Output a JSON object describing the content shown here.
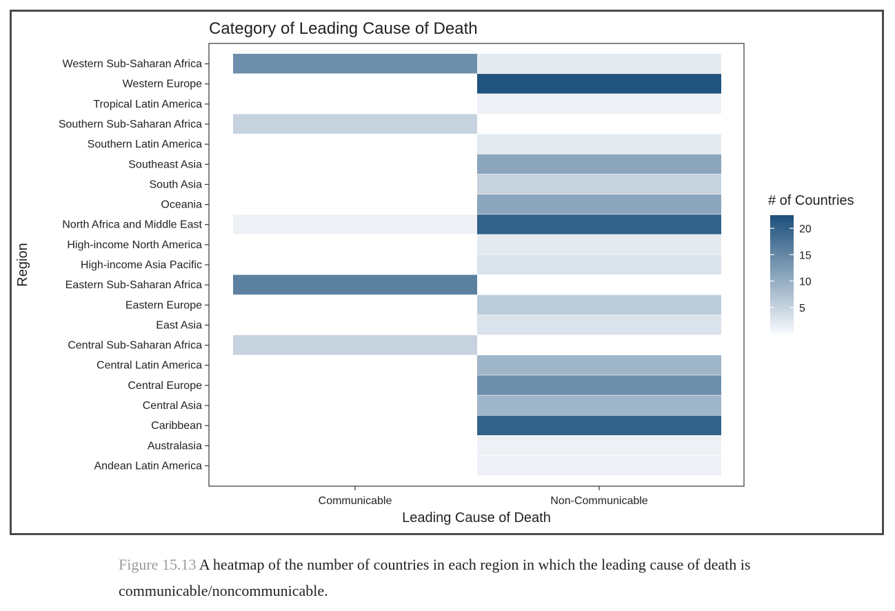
{
  "chart_data": {
    "type": "heatmap",
    "title": "Category of Leading Cause of Death",
    "xlabel": "Leading Cause of Death",
    "ylabel": "Region",
    "x_categories": [
      "Communicable",
      "Non-Communicable"
    ],
    "y_categories": [
      "Western Sub-Saharan Africa",
      "Western Europe",
      "Tropical Latin America",
      "Southern Sub-Saharan Africa",
      "Southern Latin America",
      "Southeast Asia",
      "South Asia",
      "Oceania",
      "North Africa and Middle East",
      "High-income North America",
      "High-income Asia Pacific",
      "Eastern Sub-Saharan Africa",
      "Eastern Europe",
      "East Asia",
      "Central Sub-Saharan Africa",
      "Central Latin America",
      "Central Europe",
      "Central Asia",
      "Caribbean",
      "Australasia",
      "Andean Latin America"
    ],
    "values": [
      [
        14,
        2
      ],
      [
        null,
        22
      ],
      [
        null,
        1
      ],
      [
        5,
        null
      ],
      [
        null,
        2
      ],
      [
        null,
        11
      ],
      [
        null,
        5
      ],
      [
        null,
        11
      ],
      [
        1,
        20
      ],
      [
        null,
        2
      ],
      [
        null,
        3
      ],
      [
        16,
        null
      ],
      [
        null,
        6
      ],
      [
        null,
        3
      ],
      [
        5,
        null
      ],
      [
        null,
        9
      ],
      [
        null,
        14
      ],
      [
        null,
        9
      ],
      [
        null,
        20
      ],
      [
        null,
        1
      ],
      [
        null,
        1
      ]
    ],
    "legend": {
      "title": "# of Countries",
      "ticks": [
        5,
        10,
        15,
        20
      ],
      "range": [
        0,
        22.5
      ],
      "color_low": "#f7f9fc",
      "color_high": "#1b4f7a",
      "placement": "right"
    }
  },
  "caption": {
    "figure_label": "Figure 15.13",
    "text": "A heatmap of the number of countries in each region in which the leading cause of death is communicable/noncommunicable."
  }
}
